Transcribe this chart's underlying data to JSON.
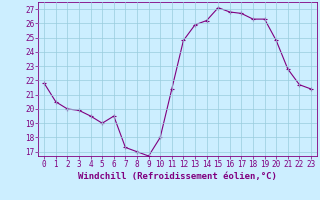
{
  "x": [
    0,
    1,
    2,
    3,
    4,
    5,
    6,
    7,
    8,
    9,
    10,
    11,
    12,
    13,
    14,
    15,
    16,
    17,
    18,
    19,
    20,
    21,
    22,
    23
  ],
  "y": [
    21.8,
    20.5,
    20.0,
    19.9,
    19.5,
    19.0,
    19.5,
    17.3,
    17.0,
    16.7,
    18.0,
    21.4,
    24.8,
    25.9,
    26.2,
    27.1,
    26.8,
    26.7,
    26.3,
    26.3,
    24.8,
    22.8,
    21.7,
    21.4
  ],
  "line_color": "#800080",
  "marker": "+",
  "bg_color": "#cceeff",
  "grid_color": "#99ccdd",
  "xlabel": "Windchill (Refroidissement éolien,°C)",
  "ylabel_ticks": [
    17,
    18,
    19,
    20,
    21,
    22,
    23,
    24,
    25,
    26,
    27
  ],
  "ylim": [
    16.7,
    27.5
  ],
  "xlim": [
    -0.5,
    23.5
  ],
  "xtick_labels": [
    "0",
    "1",
    "2",
    "3",
    "4",
    "5",
    "6",
    "7",
    "8",
    "9",
    "10",
    "11",
    "12",
    "13",
    "14",
    "15",
    "16",
    "17",
    "18",
    "19",
    "20",
    "21",
    "22",
    "23"
  ],
  "font_color": "#800080",
  "label_fontsize": 6.5,
  "tick_fontsize": 5.5,
  "linewidth": 0.8,
  "markersize": 3,
  "markeredgewidth": 0.8
}
